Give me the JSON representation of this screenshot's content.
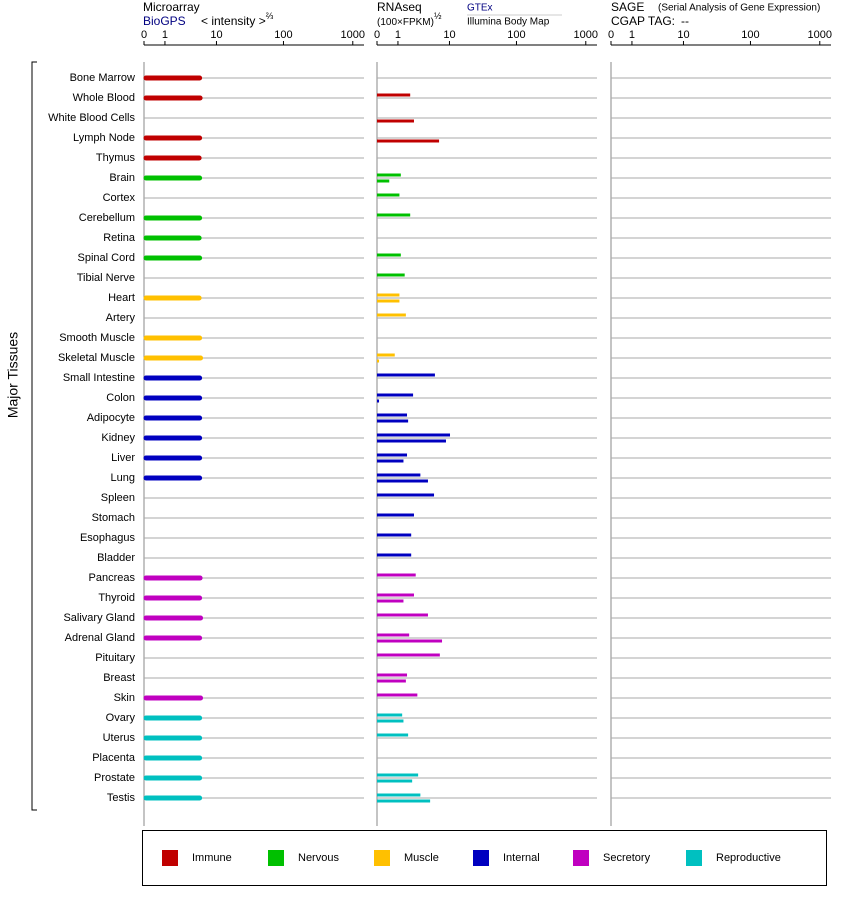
{
  "chart_data": {
    "type": "bar",
    "orientation": "horizontal",
    "scale": "log1p",
    "y_label": "Major Tissues",
    "categories": [
      "Bone Marrow",
      "Whole Blood",
      "White Blood Cells",
      "Lymph Node",
      "Thymus",
      "Brain",
      "Cortex",
      "Cerebellum",
      "Retina",
      "Spinal Cord",
      "Tibial Nerve",
      "Heart",
      "Artery",
      "Smooth Muscle",
      "Skeletal Muscle",
      "Small Intestine",
      "Colon",
      "Adipocyte",
      "Kidney",
      "Liver",
      "Lung",
      "Spleen",
      "Stomach",
      "Esophagus",
      "Bladder",
      "Pancreas",
      "Thyroid",
      "Salivary Gland",
      "Adrenal Gland",
      "Pituitary",
      "Breast",
      "Skin",
      "Ovary",
      "Uterus",
      "Placenta",
      "Prostate",
      "Testis"
    ],
    "category_groups": [
      0,
      0,
      0,
      0,
      0,
      1,
      1,
      1,
      1,
      1,
      1,
      2,
      2,
      2,
      2,
      3,
      3,
      3,
      3,
      3,
      3,
      3,
      3,
      3,
      3,
      4,
      4,
      4,
      4,
      4,
      4,
      4,
      5,
      5,
      5,
      5,
      5
    ],
    "groups": [
      {
        "name": "Immune",
        "color": "#c00000"
      },
      {
        "name": "Nervous",
        "color": "#00c000"
      },
      {
        "name": "Muscle",
        "color": "#ffc000"
      },
      {
        "name": "Internal",
        "color": "#0000c0"
      },
      {
        "name": "Secretory",
        "color": "#c000c0"
      },
      {
        "name": "Reproductive",
        "color": "#00c0c0"
      }
    ],
    "panels": [
      {
        "title": "Microarray",
        "subtitle": "< intensity >",
        "exponent": "⅔",
        "xlim": [
          0,
          1450
        ],
        "xticks": [
          0,
          1,
          10,
          100,
          1000
        ],
        "series": [
          {
            "name": "BioGPS",
            "color": "#000080",
            "values": [
              5.3,
              5.4,
              null,
              5.3,
              5.2,
              5.3,
              null,
              5.3,
              5.2,
              5.3,
              null,
              5.2,
              null,
              5.3,
              5.5,
              5.3,
              5.3,
              5.3,
              5.3,
              5.3,
              5.3,
              null,
              null,
              null,
              null,
              5.4,
              5.3,
              5.5,
              5.3,
              null,
              null,
              5.5,
              5.3,
              5.3,
              5.3,
              5.3,
              5.3
            ]
          }
        ]
      },
      {
        "title": "RNAseq",
        "subtitle": "(100×FPKM)",
        "exponent": "½",
        "xlim": [
          0,
          1450
        ],
        "xticks": [
          0,
          1,
          10,
          100,
          1000
        ],
        "series": [
          {
            "name": "GTEx",
            "color": "#000080",
            "values": [
              null,
              2.0,
              null,
              null,
              null,
              1.2,
              1.1,
              2.0,
              null,
              1.2,
              1.5,
              1.1,
              1.6,
              null,
              0.8,
              5.8,
              2.3,
              1.7,
              10.2,
              1.7,
              3.2,
              5.6,
              2.4,
              2.1,
              2.1,
              2.6,
              2.4,
              4.4,
              1.9,
              7.0,
              1.7,
              2.8,
              1.3,
              1.8,
              null,
              2.9,
              3.2
            ]
          },
          {
            "name": "Illumina Body Map",
            "color": "#000000",
            "values": [
              null,
              null,
              2.4,
              6.8,
              null,
              0.5,
              null,
              null,
              null,
              null,
              null,
              1.1,
              null,
              null,
              0.07,
              null,
              0.07,
              1.8,
              8.8,
              1.4,
              4.4,
              null,
              null,
              null,
              null,
              null,
              1.4,
              null,
              7.6,
              null,
              1.6,
              null,
              1.4,
              null,
              null,
              2.2,
              4.8
            ]
          }
        ]
      },
      {
        "title": "SAGE",
        "subtitle": "(Serial Analysis of Gene Expression)",
        "tag_label": "CGAP TAG:",
        "tag": "--",
        "xlim": [
          0,
          1450
        ],
        "xticks": [
          0,
          1,
          10,
          100,
          1000
        ],
        "series": []
      }
    ]
  }
}
